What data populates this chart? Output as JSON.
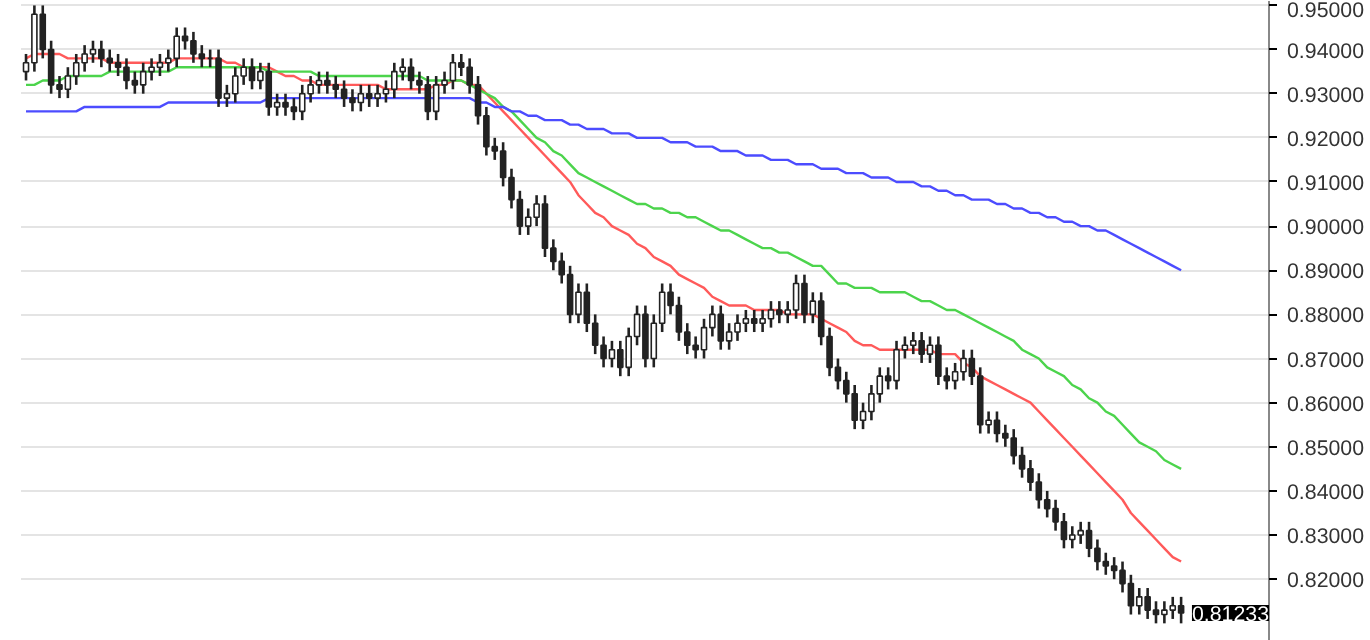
{
  "chart_data": {
    "type": "candlestick",
    "categories": [
      null,
      null,
      null,
      null,
      null,
      null,
      null,
      null,
      null,
      null,
      null,
      null,
      null,
      null,
      null,
      null,
      null,
      null,
      null,
      null,
      null,
      null,
      null,
      null,
      null,
      null,
      null,
      null,
      null,
      null,
      null,
      null,
      null,
      null,
      null,
      null,
      null,
      null,
      null,
      null,
      null,
      null,
      null,
      null,
      null,
      null,
      null,
      null,
      null,
      null,
      null,
      null,
      null,
      null,
      null,
      null,
      null,
      null,
      null,
      null,
      null,
      null,
      null,
      null,
      null,
      null,
      null,
      null,
      null,
      null,
      null,
      null,
      null,
      null,
      null,
      null,
      null,
      null,
      null,
      null,
      null,
      null,
      null,
      null,
      null,
      null,
      null,
      null,
      null,
      null,
      null,
      null,
      null,
      null,
      null,
      null,
      null,
      null,
      null,
      null,
      null,
      null,
      null,
      null,
      null,
      null,
      null,
      null,
      null,
      null,
      null,
      null,
      null,
      null,
      null,
      null,
      null,
      null,
      null,
      null,
      null,
      null,
      null,
      null,
      null,
      null,
      null,
      null,
      null,
      null,
      null,
      null,
      null,
      null,
      null,
      null,
      null,
      null,
      null
    ],
    "ohlc": [
      [
        0.935,
        0.939,
        0.933,
        0.937
      ],
      [
        0.937,
        0.95,
        0.935,
        0.948
      ],
      [
        0.948,
        0.95,
        0.938,
        0.94
      ],
      [
        0.94,
        0.942,
        0.93,
        0.932
      ],
      [
        0.932,
        0.934,
        0.929,
        0.931
      ],
      [
        0.931,
        0.936,
        0.929,
        0.934
      ],
      [
        0.934,
        0.939,
        0.932,
        0.937
      ],
      [
        0.937,
        0.941,
        0.935,
        0.939
      ],
      [
        0.939,
        0.942,
        0.937,
        0.94
      ],
      [
        0.94,
        0.942,
        0.936,
        0.938
      ],
      [
        0.938,
        0.94,
        0.935,
        0.937
      ],
      [
        0.937,
        0.939,
        0.934,
        0.936
      ],
      [
        0.936,
        0.938,
        0.931,
        0.933
      ],
      [
        0.933,
        0.935,
        0.93,
        0.932
      ],
      [
        0.932,
        0.937,
        0.93,
        0.935
      ],
      [
        0.935,
        0.938,
        0.933,
        0.936
      ],
      [
        0.936,
        0.939,
        0.934,
        0.937
      ],
      [
        0.937,
        0.94,
        0.935,
        0.938
      ],
      [
        0.938,
        0.945,
        0.936,
        0.943
      ],
      [
        0.943,
        0.945,
        0.94,
        0.942
      ],
      [
        0.942,
        0.944,
        0.937,
        0.939
      ],
      [
        0.939,
        0.941,
        0.936,
        0.938
      ],
      [
        0.938,
        0.94,
        0.936,
        0.938
      ],
      [
        0.938,
        0.94,
        0.927,
        0.929
      ],
      [
        0.929,
        0.932,
        0.927,
        0.93
      ],
      [
        0.93,
        0.936,
        0.928,
        0.934
      ],
      [
        0.934,
        0.938,
        0.932,
        0.936
      ],
      [
        0.936,
        0.938,
        0.931,
        0.933
      ],
      [
        0.933,
        0.937,
        0.931,
        0.935
      ],
      [
        0.935,
        0.937,
        0.925,
        0.927
      ],
      [
        0.927,
        0.93,
        0.925,
        0.928
      ],
      [
        0.928,
        0.93,
        0.925,
        0.927
      ],
      [
        0.927,
        0.929,
        0.924,
        0.926
      ],
      [
        0.926,
        0.932,
        0.924,
        0.93
      ],
      [
        0.93,
        0.934,
        0.928,
        0.932
      ],
      [
        0.932,
        0.935,
        0.93,
        0.933
      ],
      [
        0.933,
        0.935,
        0.93,
        0.932
      ],
      [
        0.932,
        0.934,
        0.929,
        0.931
      ],
      [
        0.931,
        0.933,
        0.927,
        0.929
      ],
      [
        0.929,
        0.931,
        0.926,
        0.928
      ],
      [
        0.928,
        0.932,
        0.926,
        0.93
      ],
      [
        0.93,
        0.932,
        0.927,
        0.929
      ],
      [
        0.929,
        0.932,
        0.927,
        0.93
      ],
      [
        0.93,
        0.933,
        0.928,
        0.931
      ],
      [
        0.931,
        0.937,
        0.929,
        0.935
      ],
      [
        0.935,
        0.938,
        0.933,
        0.936
      ],
      [
        0.936,
        0.938,
        0.931,
        0.933
      ],
      [
        0.933,
        0.935,
        0.93,
        0.932
      ],
      [
        0.932,
        0.934,
        0.924,
        0.926
      ],
      [
        0.926,
        0.934,
        0.924,
        0.932
      ],
      [
        0.932,
        0.935,
        0.93,
        0.933
      ],
      [
        0.933,
        0.939,
        0.931,
        0.937
      ],
      [
        0.937,
        0.939,
        0.934,
        0.936
      ],
      [
        0.936,
        0.938,
        0.93,
        0.932
      ],
      [
        0.932,
        0.934,
        0.923,
        0.925
      ],
      [
        0.925,
        0.927,
        0.916,
        0.918
      ],
      [
        0.918,
        0.92,
        0.915,
        0.917
      ],
      [
        0.917,
        0.919,
        0.909,
        0.911
      ],
      [
        0.911,
        0.913,
        0.904,
        0.906
      ],
      [
        0.906,
        0.908,
        0.898,
        0.9
      ],
      [
        0.9,
        0.904,
        0.898,
        0.902
      ],
      [
        0.902,
        0.907,
        0.9,
        0.905
      ],
      [
        0.905,
        0.907,
        0.893,
        0.895
      ],
      [
        0.895,
        0.897,
        0.89,
        0.892
      ],
      [
        0.892,
        0.894,
        0.887,
        0.889
      ],
      [
        0.889,
        0.891,
        0.878,
        0.88
      ],
      [
        0.88,
        0.887,
        0.878,
        0.885
      ],
      [
        0.885,
        0.887,
        0.876,
        0.878
      ],
      [
        0.878,
        0.88,
        0.871,
        0.873
      ],
      [
        0.873,
        0.875,
        0.868,
        0.87
      ],
      [
        0.87,
        0.874,
        0.868,
        0.872
      ],
      [
        0.872,
        0.874,
        0.866,
        0.868
      ],
      [
        0.868,
        0.877,
        0.866,
        0.875
      ],
      [
        0.875,
        0.882,
        0.873,
        0.88
      ],
      [
        0.88,
        0.882,
        0.868,
        0.87
      ],
      [
        0.87,
        0.88,
        0.868,
        0.878
      ],
      [
        0.878,
        0.887,
        0.876,
        0.885
      ],
      [
        0.885,
        0.887,
        0.88,
        0.882
      ],
      [
        0.882,
        0.884,
        0.874,
        0.876
      ],
      [
        0.876,
        0.878,
        0.871,
        0.873
      ],
      [
        0.873,
        0.875,
        0.87,
        0.872
      ],
      [
        0.872,
        0.879,
        0.87,
        0.877
      ],
      [
        0.877,
        0.882,
        0.875,
        0.88
      ],
      [
        0.88,
        0.882,
        0.872,
        0.874
      ],
      [
        0.874,
        0.878,
        0.872,
        0.876
      ],
      [
        0.876,
        0.88,
        0.874,
        0.878
      ],
      [
        0.878,
        0.881,
        0.876,
        0.879
      ],
      [
        0.879,
        0.881,
        0.876,
        0.878
      ],
      [
        0.878,
        0.881,
        0.876,
        0.879
      ],
      [
        0.879,
        0.883,
        0.877,
        0.881
      ],
      [
        0.881,
        0.883,
        0.878,
        0.88
      ],
      [
        0.88,
        0.883,
        0.878,
        0.881
      ],
      [
        0.881,
        0.889,
        0.879,
        0.887
      ],
      [
        0.887,
        0.889,
        0.878,
        0.88
      ],
      [
        0.88,
        0.885,
        0.878,
        0.883
      ],
      [
        0.883,
        0.885,
        0.873,
        0.875
      ],
      [
        0.875,
        0.877,
        0.866,
        0.868
      ],
      [
        0.868,
        0.87,
        0.863,
        0.865
      ],
      [
        0.865,
        0.867,
        0.86,
        0.862
      ],
      [
        0.862,
        0.864,
        0.854,
        0.856
      ],
      [
        0.856,
        0.86,
        0.854,
        0.858
      ],
      [
        0.858,
        0.864,
        0.856,
        0.862
      ],
      [
        0.862,
        0.868,
        0.86,
        0.866
      ],
      [
        0.866,
        0.868,
        0.863,
        0.865
      ],
      [
        0.865,
        0.874,
        0.863,
        0.872
      ],
      [
        0.872,
        0.875,
        0.87,
        0.873
      ],
      [
        0.873,
        0.876,
        0.871,
        0.874
      ],
      [
        0.874,
        0.876,
        0.869,
        0.871
      ],
      [
        0.871,
        0.875,
        0.869,
        0.873
      ],
      [
        0.873,
        0.875,
        0.864,
        0.866
      ],
      [
        0.866,
        0.868,
        0.863,
        0.865
      ],
      [
        0.865,
        0.869,
        0.863,
        0.867
      ],
      [
        0.867,
        0.872,
        0.865,
        0.87
      ],
      [
        0.87,
        0.872,
        0.864,
        0.866
      ],
      [
        0.866,
        0.868,
        0.853,
        0.855
      ],
      [
        0.855,
        0.858,
        0.853,
        0.856
      ],
      [
        0.856,
        0.858,
        0.851,
        0.853
      ],
      [
        0.853,
        0.855,
        0.85,
        0.852
      ],
      [
        0.852,
        0.854,
        0.846,
        0.848
      ],
      [
        0.848,
        0.85,
        0.843,
        0.845
      ],
      [
        0.845,
        0.847,
        0.84,
        0.842
      ],
      [
        0.842,
        0.844,
        0.836,
        0.838
      ],
      [
        0.838,
        0.84,
        0.834,
        0.836
      ],
      [
        0.836,
        0.838,
        0.831,
        0.833
      ],
      [
        0.833,
        0.835,
        0.827,
        0.829
      ],
      [
        0.829,
        0.832,
        0.827,
        0.83
      ],
      [
        0.83,
        0.833,
        0.828,
        0.831
      ],
      [
        0.831,
        0.833,
        0.825,
        0.827
      ],
      [
        0.827,
        0.829,
        0.822,
        0.824
      ],
      [
        0.824,
        0.826,
        0.821,
        0.823
      ],
      [
        0.823,
        0.825,
        0.82,
        0.822
      ],
      [
        0.822,
        0.824,
        0.817,
        0.819
      ],
      [
        0.819,
        0.821,
        0.812,
        0.814
      ],
      [
        0.814,
        0.818,
        0.812,
        0.816
      ],
      [
        0.816,
        0.818,
        0.811,
        0.813
      ],
      [
        0.813,
        0.815,
        0.81,
        0.812
      ],
      [
        0.812,
        0.815,
        0.81,
        0.813
      ],
      [
        0.813,
        0.816,
        0.811,
        0.814
      ],
      [
        0.814,
        0.816,
        0.81,
        0.81233
      ]
    ],
    "series": [
      {
        "type": "line",
        "color": "#ff5a5a",
        "values": [
          0.938,
          0.939,
          0.939,
          0.939,
          0.939,
          0.938,
          0.938,
          0.938,
          0.938,
          0.938,
          0.937,
          0.937,
          0.937,
          0.937,
          0.937,
          0.937,
          0.937,
          0.937,
          0.938,
          0.938,
          0.938,
          0.938,
          0.938,
          0.938,
          0.937,
          0.937,
          0.936,
          0.936,
          0.936,
          0.936,
          0.935,
          0.934,
          0.934,
          0.933,
          0.933,
          0.932,
          0.932,
          0.932,
          0.932,
          0.932,
          0.932,
          0.932,
          0.932,
          0.931,
          0.931,
          0.931,
          0.931,
          0.931,
          0.931,
          0.932,
          0.932,
          0.933,
          0.933,
          0.932,
          0.932,
          0.93,
          0.928,
          0.926,
          0.924,
          0.922,
          0.92,
          0.918,
          0.916,
          0.914,
          0.912,
          0.91,
          0.907,
          0.905,
          0.903,
          0.902,
          0.9,
          0.899,
          0.898,
          0.896,
          0.895,
          0.893,
          0.892,
          0.891,
          0.889,
          0.888,
          0.887,
          0.886,
          0.884,
          0.883,
          0.882,
          0.882,
          0.882,
          0.881,
          0.881,
          0.881,
          0.881,
          0.88,
          0.88,
          0.88,
          0.88,
          0.879,
          0.878,
          0.877,
          0.876,
          0.874,
          0.873,
          0.873,
          0.872,
          0.872,
          0.872,
          0.872,
          0.872,
          0.872,
          0.872,
          0.871,
          0.871,
          0.871,
          0.869,
          0.868,
          0.866,
          0.865,
          0.864,
          0.863,
          0.862,
          0.861,
          0.86,
          0.858,
          0.856,
          0.854,
          0.852,
          0.85,
          0.848,
          0.846,
          0.844,
          0.842,
          0.84,
          0.838,
          0.835,
          0.833,
          0.831,
          0.829,
          0.827,
          0.825,
          0.824
        ]
      },
      {
        "type": "line",
        "color": "#4cd44c",
        "values": [
          0.932,
          0.932,
          0.933,
          0.933,
          0.933,
          0.934,
          0.934,
          0.934,
          0.934,
          0.934,
          0.935,
          0.935,
          0.935,
          0.935,
          0.935,
          0.935,
          0.935,
          0.935,
          0.936,
          0.936,
          0.936,
          0.936,
          0.936,
          0.936,
          0.936,
          0.936,
          0.936,
          0.936,
          0.936,
          0.935,
          0.935,
          0.935,
          0.935,
          0.935,
          0.935,
          0.934,
          0.934,
          0.934,
          0.934,
          0.934,
          0.934,
          0.934,
          0.934,
          0.934,
          0.934,
          0.934,
          0.934,
          0.934,
          0.933,
          0.933,
          0.933,
          0.933,
          0.933,
          0.932,
          0.931,
          0.93,
          0.929,
          0.927,
          0.926,
          0.924,
          0.922,
          0.92,
          0.919,
          0.917,
          0.916,
          0.914,
          0.912,
          0.911,
          0.91,
          0.909,
          0.908,
          0.907,
          0.906,
          0.905,
          0.905,
          0.904,
          0.904,
          0.903,
          0.903,
          0.902,
          0.902,
          0.901,
          0.9,
          0.899,
          0.899,
          0.898,
          0.897,
          0.896,
          0.895,
          0.895,
          0.894,
          0.894,
          0.893,
          0.892,
          0.891,
          0.891,
          0.889,
          0.887,
          0.887,
          0.886,
          0.886,
          0.886,
          0.885,
          0.885,
          0.885,
          0.885,
          0.884,
          0.883,
          0.883,
          0.882,
          0.881,
          0.881,
          0.88,
          0.879,
          0.878,
          0.877,
          0.876,
          0.875,
          0.874,
          0.872,
          0.871,
          0.87,
          0.868,
          0.867,
          0.866,
          0.864,
          0.863,
          0.861,
          0.86,
          0.858,
          0.857,
          0.855,
          0.853,
          0.851,
          0.85,
          0.849,
          0.847,
          0.846,
          0.845
        ]
      },
      {
        "type": "line",
        "color": "#4c4cff",
        "values": [
          0.926,
          0.926,
          0.926,
          0.926,
          0.926,
          0.926,
          0.926,
          0.927,
          0.927,
          0.927,
          0.927,
          0.927,
          0.927,
          0.927,
          0.927,
          0.927,
          0.927,
          0.928,
          0.928,
          0.928,
          0.928,
          0.928,
          0.928,
          0.928,
          0.928,
          0.928,
          0.928,
          0.928,
          0.928,
          0.929,
          0.929,
          0.929,
          0.929,
          0.929,
          0.929,
          0.929,
          0.929,
          0.929,
          0.929,
          0.929,
          0.929,
          0.929,
          0.929,
          0.929,
          0.929,
          0.929,
          0.929,
          0.929,
          0.929,
          0.929,
          0.929,
          0.929,
          0.929,
          0.929,
          0.928,
          0.928,
          0.927,
          0.927,
          0.926,
          0.926,
          0.925,
          0.925,
          0.924,
          0.924,
          0.924,
          0.923,
          0.923,
          0.922,
          0.922,
          0.922,
          0.921,
          0.921,
          0.921,
          0.92,
          0.92,
          0.92,
          0.92,
          0.919,
          0.919,
          0.919,
          0.918,
          0.918,
          0.918,
          0.917,
          0.917,
          0.917,
          0.916,
          0.916,
          0.916,
          0.915,
          0.915,
          0.915,
          0.914,
          0.914,
          0.914,
          0.913,
          0.913,
          0.913,
          0.912,
          0.912,
          0.912,
          0.911,
          0.911,
          0.911,
          0.91,
          0.91,
          0.91,
          0.909,
          0.909,
          0.908,
          0.908,
          0.907,
          0.907,
          0.906,
          0.906,
          0.906,
          0.905,
          0.905,
          0.904,
          0.904,
          0.903,
          0.903,
          0.902,
          0.902,
          0.901,
          0.901,
          0.9,
          0.9,
          0.899,
          0.899,
          0.898,
          0.897,
          0.896,
          0.895,
          0.894,
          0.893,
          0.892,
          0.891,
          0.89
        ]
      }
    ],
    "ylim": [
      0.806,
      0.951
    ],
    "yticks": [
      {
        "value": 0.82,
        "label": "0.82000"
      },
      {
        "value": 0.83,
        "label": "0.83000"
      },
      {
        "value": 0.84,
        "label": "0.84000"
      },
      {
        "value": 0.85,
        "label": "0.85000"
      },
      {
        "value": 0.86,
        "label": "0.86000"
      },
      {
        "value": 0.87,
        "label": "0.87000"
      },
      {
        "value": 0.88,
        "label": "0.88000"
      },
      {
        "value": 0.89,
        "label": "0.89000"
      },
      {
        "value": 0.9,
        "label": "0.90000"
      },
      {
        "value": 0.91,
        "label": "0.91000"
      },
      {
        "value": 0.92,
        "label": "0.92000"
      },
      {
        "value": 0.93,
        "label": "0.93000"
      },
      {
        "value": 0.94,
        "label": "0.94000"
      },
      {
        "value": 0.95,
        "label": "0.95000"
      }
    ],
    "annotations": [
      "0.81233"
    ],
    "tick_labels": "y",
    "grid": "y"
  }
}
